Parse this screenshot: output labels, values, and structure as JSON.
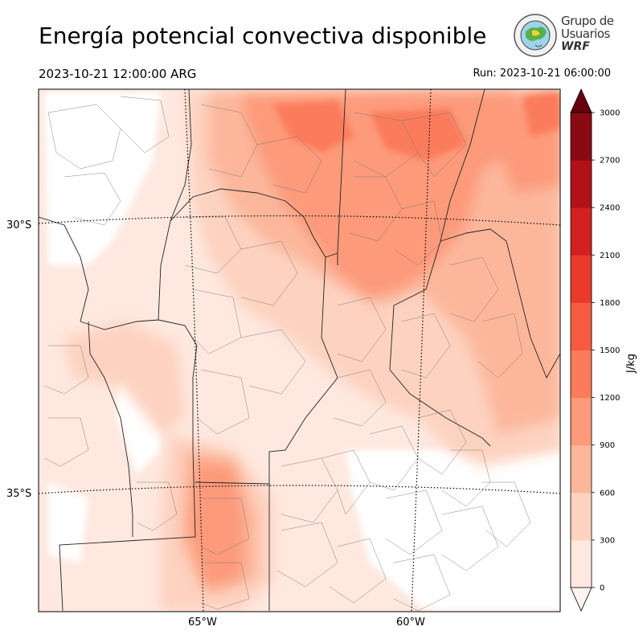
{
  "header": {
    "title": "Energía potencial convectiva disponible",
    "valid_time": "2023-10-21 12:00:00 ARG",
    "run_time": "Run: 2023-10-21 06:00:00"
  },
  "logo": {
    "line1": "Grupo de",
    "line2": "Usuarios",
    "line3": "WRF"
  },
  "map": {
    "lat_labels": [
      "30°S",
      "35°S"
    ],
    "lon_labels": [
      "65°W",
      "60°W"
    ]
  },
  "colorbar": {
    "unit": "J/kg",
    "ticks": [
      "0",
      "300",
      "600",
      "900",
      "1200",
      "1500",
      "1800",
      "2100",
      "2400",
      "2700",
      "3000"
    ],
    "colors": [
      "#fee8df",
      "#fdd2c0",
      "#fcb79b",
      "#fc9a7a",
      "#fb7c5c",
      "#f65b40",
      "#ea3a2c",
      "#d1201f",
      "#b11218",
      "#8a0a13",
      "#67000d"
    ]
  }
}
